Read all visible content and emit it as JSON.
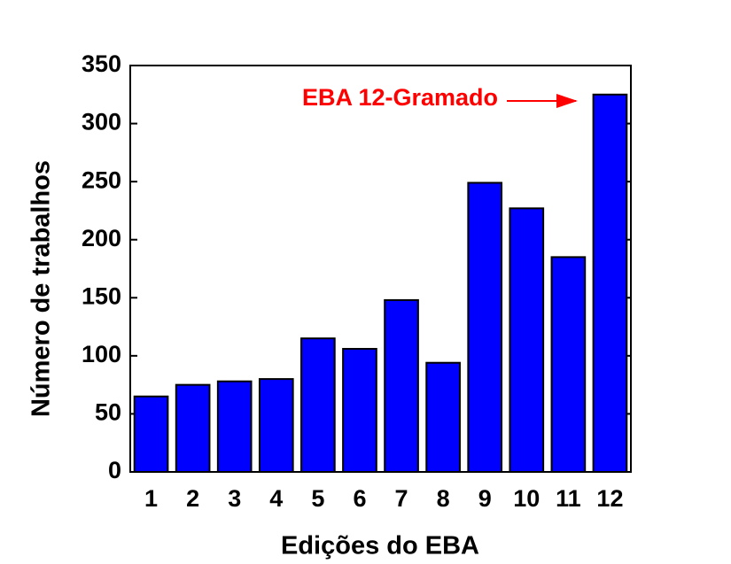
{
  "chart_data": {
    "type": "bar",
    "x_label": "Edições do EBA",
    "y_label": "Número de trabalhos",
    "categories": [
      "1",
      "2",
      "3",
      "4",
      "5",
      "6",
      "7",
      "8",
      "9",
      "10",
      "11",
      "12"
    ],
    "values": [
      65,
      75,
      78,
      80,
      115,
      106,
      148,
      94,
      249,
      227,
      185,
      325
    ],
    "color": "#0000ff",
    "ylim": [
      0,
      350
    ],
    "yticks": [
      0,
      50,
      100,
      150,
      200,
      250,
      300,
      350
    ],
    "annotation": "EBA 12-Gramado",
    "annotation_color": "#ff0000"
  }
}
